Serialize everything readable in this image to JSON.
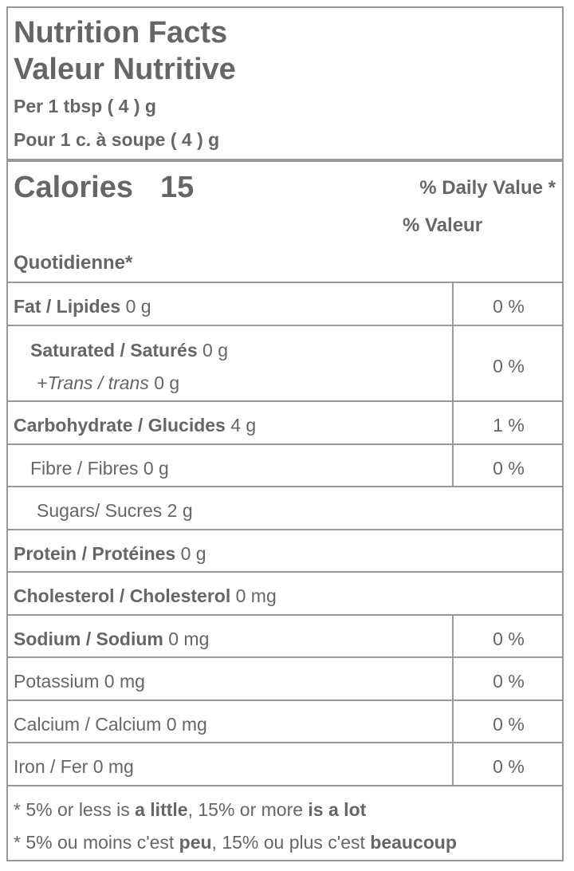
{
  "header": {
    "title_en": "Nutrition Facts",
    "title_fr": "Valeur Nutritive",
    "serving_en": "Per 1 tbsp ( 4 ) g",
    "serving_fr": "Pour 1 c. à soupe ( 4 ) g"
  },
  "calories": {
    "label": "Calories",
    "value": "15"
  },
  "daily_value": {
    "line1": "% Daily Value *",
    "line2": "% Valeur",
    "line3": "Quotidienne*"
  },
  "nutrients": {
    "fat": {
      "label": "Fat / Lipides",
      "amount": "0 g",
      "dv": "0 %"
    },
    "saturated": {
      "label": "Saturated / Saturés",
      "amount": "0 g"
    },
    "trans": {
      "label": "+Trans / trans",
      "amount": "0 g"
    },
    "sat_trans_dv": "0 %",
    "carbohydrate": {
      "label": "Carbohydrate / Glucides",
      "amount": "4 g",
      "dv": "1 %"
    },
    "fibre": {
      "label": "Fibre / Fibres",
      "amount": "0 g",
      "dv": "0 %"
    },
    "sugars": {
      "label": "Sugars/ Sucres",
      "amount": "2 g"
    },
    "protein": {
      "label": "Protein / Protéines",
      "amount": "0 g"
    },
    "cholesterol": {
      "label": "Cholesterol / Cholesterol",
      "amount": "0 mg"
    },
    "sodium": {
      "label": "Sodium / Sodium",
      "amount": "0 mg",
      "dv": "0 %"
    },
    "potassium": {
      "label": "Potassium",
      "amount": "0 mg",
      "dv": "0 %"
    },
    "calcium": {
      "label": "Calcium / Calcium",
      "amount": "0 mg",
      "dv": "0 %"
    },
    "iron": {
      "label": "Iron / Fer",
      "amount": "0 mg",
      "dv": "0 %"
    }
  },
  "footnote": {
    "en_prefix": "* 5% or less is ",
    "en_bold1": "a little",
    "en_mid": ", 15% or more ",
    "en_bold2": "is a lot",
    "fr_prefix": "* 5% ou moins c'est ",
    "fr_bold1": "peu",
    "fr_mid": ", 15% ou plus c'est ",
    "fr_bold2": "beaucoup"
  },
  "colors": {
    "text": "#666666",
    "rule": "#999999",
    "background": "#ffffff"
  }
}
